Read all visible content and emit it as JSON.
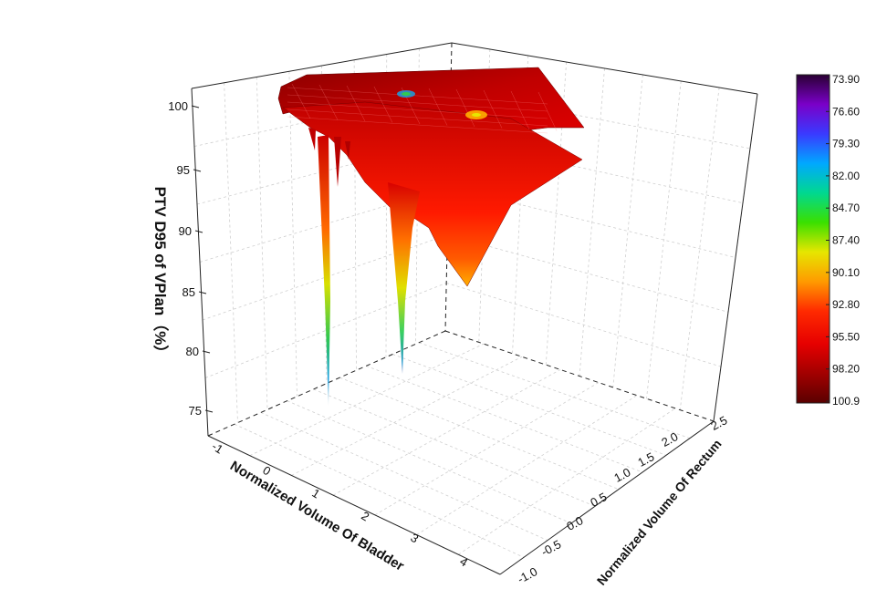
{
  "chart_data": {
    "type": "surface3d",
    "title": "",
    "zlabel": "PTV D95 of VPlan（%）",
    "xlabel": "Normalized  Volume Of Bladder",
    "ylabel": "Normalized Volume Of Rectum",
    "zlim": [
      73,
      100.9
    ],
    "z_ticks": [
      "100",
      "95",
      "90",
      "85",
      "80",
      "75"
    ],
    "x_ticks": [
      "-1",
      "0",
      "1",
      "2",
      "3",
      "4"
    ],
    "y_ticks": [
      "-1.0",
      "-0.5",
      "0.0",
      "0.5",
      "1.0",
      "1.5",
      "2.0",
      "2.5"
    ],
    "colorbar": {
      "labels": [
        "73.90",
        "76.60",
        "79.30",
        "82.00",
        "84.70",
        "87.40",
        "90.10",
        "92.80",
        "95.50",
        "98.20",
        "100.9"
      ],
      "colors": [
        "#2a0033",
        "#7a00c8",
        "#3a3aff",
        "#00a8ff",
        "#00d890",
        "#3ae000",
        "#e6e600",
        "#ff9a00",
        "#ff2a00",
        "#e60000",
        "#9a0000",
        "#5a0000"
      ]
    },
    "surface_features": [
      {
        "description_x": -0.6,
        "min_z": 75.0
      },
      {
        "description_x": 1.2,
        "min_z": 78.5
      },
      {
        "description_x": 2.9,
        "min_z": 85.5
      }
    ]
  }
}
